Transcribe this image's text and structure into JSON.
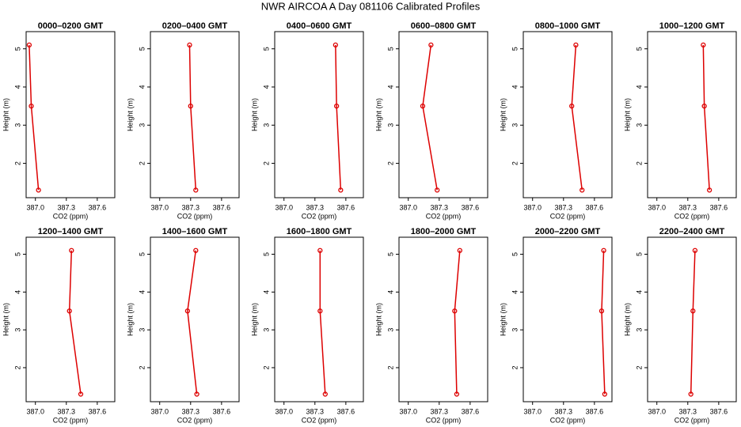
{
  "title": "NWR AIRCOA A  Day 081106  Calibrated Profiles",
  "chart_data": [
    {
      "type": "line",
      "title": "0000–0200 GMT",
      "x_label": "CO2 (ppm)",
      "y_label": "Height (m)",
      "xlim": [
        386.91,
        387.77
      ],
      "ylim": [
        1.1,
        5.45
      ],
      "xticks": [
        {
          "value": 387,
          "label": "387.0"
        },
        387.3,
        387.6
      ],
      "yticks": [
        2,
        3,
        4,
        5
      ],
      "series": [
        {
          "color": "#dd0000",
          "x": [
            386.94,
            386.96,
            387.03
          ],
          "values": [
            5.1,
            3.5,
            1.3
          ]
        }
      ]
    },
    {
      "type": "line",
      "title": "0200–0400 GMT",
      "x_label": "CO2 (ppm)",
      "y_label": "Height (m)",
      "xlim": [
        386.91,
        387.77
      ],
      "ylim": [
        1.1,
        5.45
      ],
      "xticks": [
        {
          "value": 387,
          "label": "387.0"
        },
        387.3,
        387.6
      ],
      "yticks": [
        2,
        3,
        4,
        5
      ],
      "series": [
        {
          "color": "#dd0000",
          "x": [
            387.29,
            387.3,
            387.35
          ],
          "values": [
            5.1,
            3.5,
            1.3
          ]
        }
      ]
    },
    {
      "type": "line",
      "title": "0400–0600 GMT",
      "x_label": "CO2 (ppm)",
      "y_label": "Height (m)",
      "xlim": [
        386.91,
        387.77
      ],
      "ylim": [
        1.1,
        5.45
      ],
      "xticks": [
        {
          "value": 387,
          "label": "387.0"
        },
        387.3,
        387.6
      ],
      "yticks": [
        2,
        3,
        4,
        5
      ],
      "series": [
        {
          "color": "#dd0000",
          "x": [
            387.5,
            387.51,
            387.55
          ],
          "values": [
            5.1,
            3.5,
            1.3
          ]
        }
      ]
    },
    {
      "type": "line",
      "title": "0600–0800 GMT",
      "x_label": "CO2 (ppm)",
      "y_label": "Height (m)",
      "xlim": [
        386.91,
        387.77
      ],
      "ylim": [
        1.1,
        5.45
      ],
      "xticks": [
        {
          "value": 387,
          "label": "387.0"
        },
        387.3,
        387.6
      ],
      "yticks": [
        2,
        3,
        4,
        5
      ],
      "series": [
        {
          "color": "#dd0000",
          "x": [
            387.22,
            387.14,
            387.28
          ],
          "values": [
            5.1,
            3.5,
            1.3
          ]
        }
      ]
    },
    {
      "type": "line",
      "title": "0800–1000 GMT",
      "x_label": "CO2 (ppm)",
      "y_label": "Height (m)",
      "xlim": [
        386.91,
        387.77
      ],
      "ylim": [
        1.1,
        5.45
      ],
      "xticks": [
        {
          "value": 387,
          "label": "387.0"
        },
        387.3,
        387.6
      ],
      "yticks": [
        2,
        3,
        4,
        5
      ],
      "series": [
        {
          "color": "#dd0000",
          "x": [
            387.42,
            387.38,
            387.48
          ],
          "values": [
            5.1,
            3.5,
            1.3
          ]
        }
      ]
    },
    {
      "type": "line",
      "title": "1000–1200 GMT",
      "x_label": "CO2 (ppm)",
      "y_label": "Height (m)",
      "xlim": [
        386.91,
        387.77
      ],
      "ylim": [
        1.1,
        5.45
      ],
      "xticks": [
        {
          "value": 387,
          "label": "387.0"
        },
        387.3,
        387.6
      ],
      "yticks": [
        2,
        3,
        4,
        5
      ],
      "series": [
        {
          "color": "#dd0000",
          "x": [
            387.45,
            387.46,
            387.51
          ],
          "values": [
            5.1,
            3.5,
            1.3
          ]
        }
      ]
    },
    {
      "type": "line",
      "title": "1200–1400 GMT",
      "x_label": "CO2 (ppm)",
      "y_label": "Height (m)",
      "xlim": [
        386.91,
        387.77
      ],
      "ylim": [
        1.1,
        5.45
      ],
      "xticks": [
        {
          "value": 387,
          "label": "387.0"
        },
        387.3,
        387.6
      ],
      "yticks": [
        2,
        3,
        4,
        5
      ],
      "series": [
        {
          "color": "#dd0000",
          "x": [
            387.35,
            387.33,
            387.44
          ],
          "values": [
            5.1,
            3.5,
            1.3
          ]
        }
      ]
    },
    {
      "type": "line",
      "title": "1400–1600 GMT",
      "x_label": "CO2 (ppm)",
      "y_label": "Height (m)",
      "xlim": [
        386.91,
        387.77
      ],
      "ylim": [
        1.1,
        5.45
      ],
      "xticks": [
        {
          "value": 387,
          "label": "387.0"
        },
        387.3,
        387.6
      ],
      "yticks": [
        2,
        3,
        4,
        5
      ],
      "series": [
        {
          "color": "#dd0000",
          "x": [
            387.35,
            387.27,
            387.36
          ],
          "values": [
            5.1,
            3.5,
            1.3
          ]
        }
      ]
    },
    {
      "type": "line",
      "title": "1600–1800 GMT",
      "x_label": "CO2 (ppm)",
      "y_label": "Height (m)",
      "xlim": [
        386.91,
        387.77
      ],
      "ylim": [
        1.1,
        5.45
      ],
      "xticks": [
        {
          "value": 387,
          "label": "387.0"
        },
        387.3,
        387.6
      ],
      "yticks": [
        2,
        3,
        4,
        5
      ],
      "series": [
        {
          "color": "#dd0000",
          "x": [
            387.35,
            387.35,
            387.4
          ],
          "values": [
            5.1,
            3.5,
            1.3
          ]
        }
      ]
    },
    {
      "type": "line",
      "title": "1800–2000 GMT",
      "x_label": "CO2 (ppm)",
      "y_label": "Height (m)",
      "xlim": [
        386.91,
        387.77
      ],
      "ylim": [
        1.1,
        5.45
      ],
      "xticks": [
        {
          "value": 387,
          "label": "387.0"
        },
        387.3,
        387.6
      ],
      "yticks": [
        2,
        3,
        4,
        5
      ],
      "series": [
        {
          "color": "#dd0000",
          "x": [
            387.5,
            387.45,
            387.47
          ],
          "values": [
            5.1,
            3.5,
            1.3
          ]
        }
      ]
    },
    {
      "type": "line",
      "title": "2000–2200 GMT",
      "x_label": "CO2 (ppm)",
      "y_label": "Height (m)",
      "xlim": [
        386.91,
        387.77
      ],
      "ylim": [
        1.1,
        5.45
      ],
      "xticks": [
        {
          "value": 387,
          "label": "387.0"
        },
        387.3,
        387.6
      ],
      "yticks": [
        2,
        3,
        4,
        5
      ],
      "series": [
        {
          "color": "#dd0000",
          "x": [
            387.69,
            387.67,
            387.7
          ],
          "values": [
            5.1,
            3.5,
            1.3
          ]
        }
      ]
    },
    {
      "type": "line",
      "title": "2200–2400 GMT",
      "x_label": "CO2 (ppm)",
      "y_label": "Height (m)",
      "xlim": [
        386.91,
        387.77
      ],
      "ylim": [
        1.1,
        5.45
      ],
      "xticks": [
        {
          "value": 387,
          "label": "387.0"
        },
        387.3,
        387.6
      ],
      "yticks": [
        2,
        3,
        4,
        5
      ],
      "series": [
        {
          "color": "#dd0000",
          "x": [
            387.37,
            387.35,
            387.33
          ],
          "values": [
            5.1,
            3.5,
            1.3
          ]
        }
      ]
    }
  ]
}
